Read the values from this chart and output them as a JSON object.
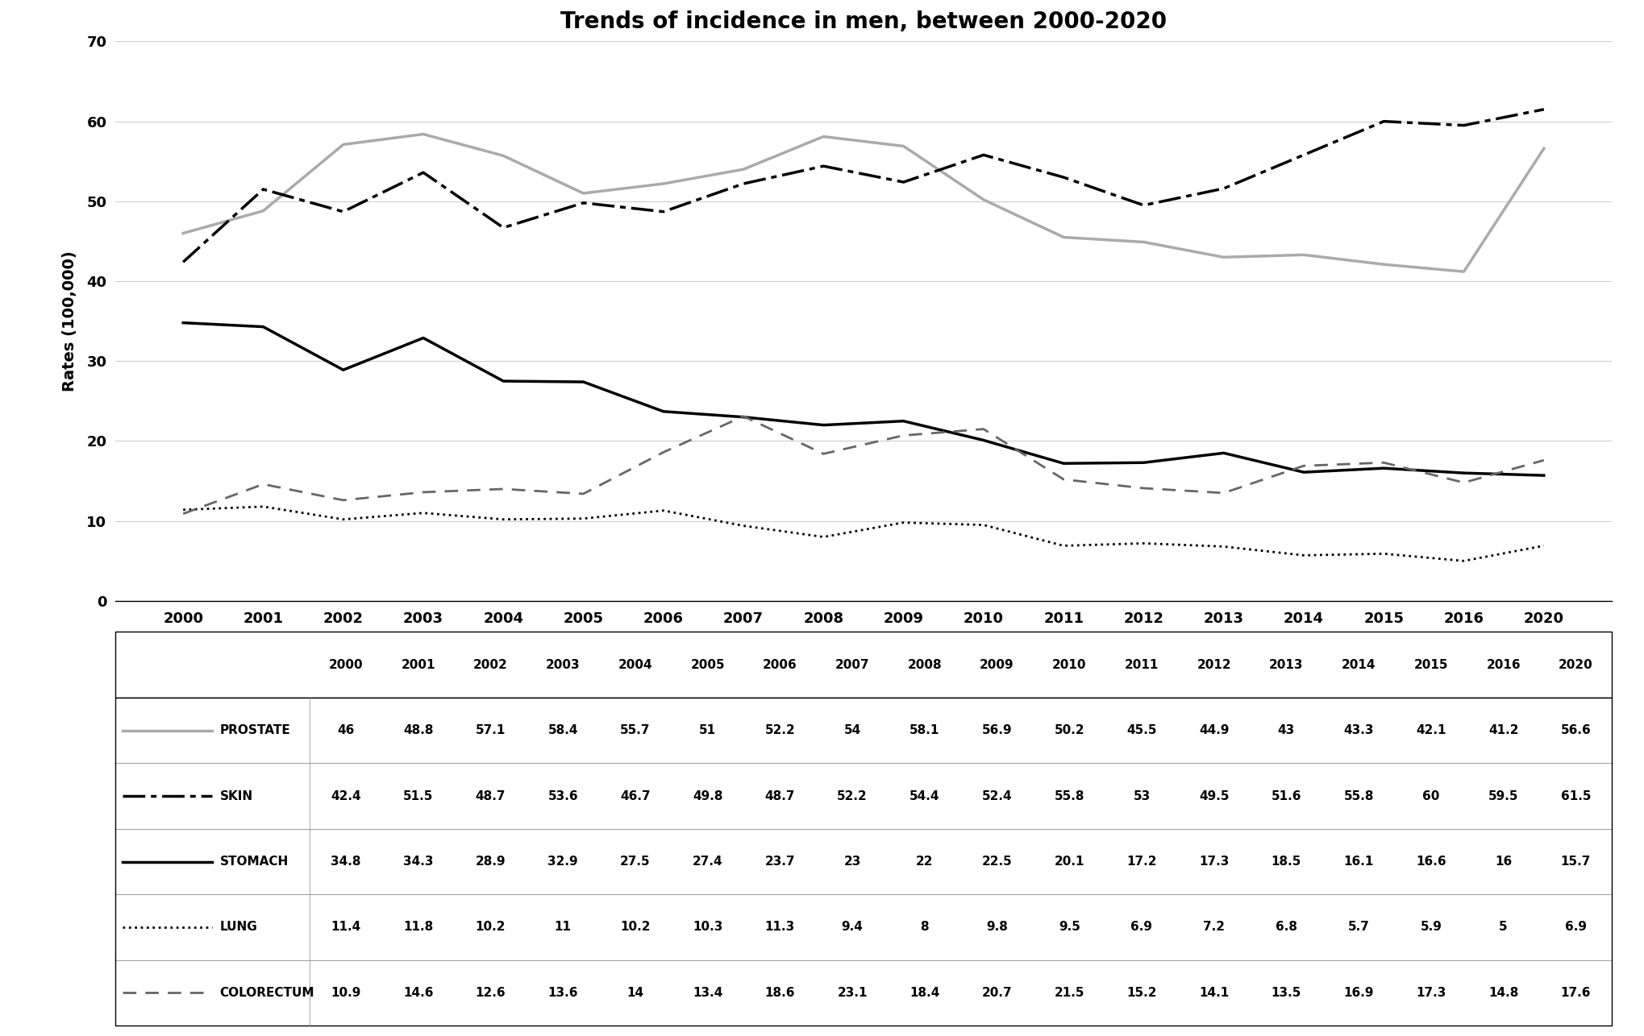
{
  "title": "Trends of incidence in men, between 2000-2020",
  "ylabel": "Rates (100,000)",
  "years": [
    2000,
    2001,
    2002,
    2003,
    2004,
    2005,
    2006,
    2007,
    2008,
    2009,
    2010,
    2011,
    2012,
    2013,
    2014,
    2015,
    2016,
    2020
  ],
  "prostate": [
    46,
    48.8,
    57.1,
    58.4,
    55.7,
    51,
    52.2,
    54,
    58.1,
    56.9,
    50.2,
    45.5,
    44.9,
    43,
    43.3,
    42.1,
    41.2,
    56.6
  ],
  "skin": [
    42.4,
    51.5,
    48.7,
    53.6,
    46.7,
    49.8,
    48.7,
    52.2,
    54.4,
    52.4,
    55.8,
    53,
    49.5,
    51.6,
    55.8,
    60,
    59.5,
    61.5
  ],
  "stomach": [
    34.8,
    34.3,
    28.9,
    32.9,
    27.5,
    27.4,
    23.7,
    23,
    22,
    22.5,
    20.1,
    17.2,
    17.3,
    18.5,
    16.1,
    16.6,
    16,
    15.7
  ],
  "lung": [
    11.4,
    11.8,
    10.2,
    11,
    10.2,
    10.3,
    11.3,
    9.4,
    8,
    9.8,
    9.5,
    6.9,
    7.2,
    6.8,
    5.7,
    5.9,
    5,
    6.9
  ],
  "colorectum": [
    10.9,
    14.6,
    12.6,
    13.6,
    14,
    13.4,
    18.6,
    23.1,
    18.4,
    20.7,
    21.5,
    15.2,
    14.1,
    13.5,
    16.9,
    17.3,
    14.8,
    17.6
  ],
  "ylim": [
    0,
    70
  ],
  "yticks": [
    0,
    10,
    20,
    30,
    40,
    50,
    60,
    70
  ],
  "prostate_color": "#aaaaaa",
  "skin_color": "#000000",
  "stomach_color": "#000000",
  "lung_color": "#000000",
  "colorectum_color": "#666666",
  "title_fontsize": 20,
  "label_fontsize": 14,
  "tick_fontsize": 13,
  "table_fontsize": 11
}
